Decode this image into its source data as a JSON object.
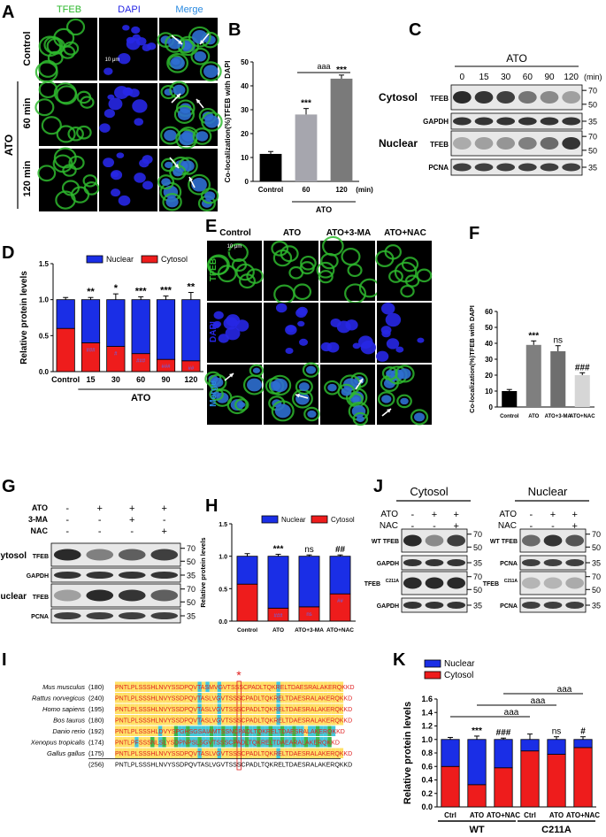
{
  "colors": {
    "nuclear": "#1a2ee6",
    "cytosol": "#ee1c1c",
    "bar_control": "#000000",
    "bar_60": "#a6a6ae",
    "bar_120": "#7a7a7a",
    "tfeb_green": "#2eb82e",
    "dapi_blue": "#2727e6",
    "merge_blue": "#2a8ae0",
    "seq_yellow": "#ffe066",
    "seq_cyan": "#44c8d8",
    "seq_green": "#3cb84c",
    "seq_red": "#e02020"
  },
  "panels": {
    "A": "A",
    "B": "B",
    "C": "C",
    "D": "D",
    "E": "E",
    "F": "F",
    "G": "G",
    "H": "H",
    "I": "I",
    "J": "J",
    "K": "K"
  },
  "panelA": {
    "col_headers": [
      "TFEB",
      "DAPI",
      "Merge"
    ],
    "row_labels": [
      "Control",
      "60 min",
      "120 min"
    ],
    "group_label": "ATO",
    "scale_bar": "10 μm"
  },
  "panelC": {
    "group_label": "ATO",
    "lanes": [
      "0",
      "15",
      "30",
      "60",
      "90",
      "120"
    ],
    "unit": "(min)",
    "rows": [
      {
        "section": "Cytosol",
        "label": "TFEB",
        "markers": [
          "70",
          "50"
        ],
        "band_intensity": [
          0.9,
          0.85,
          0.8,
          0.55,
          0.45,
          0.35
        ]
      },
      {
        "section": "",
        "label": "GAPDH",
        "markers": [
          "35"
        ],
        "band_intensity": [
          0.85,
          0.85,
          0.85,
          0.85,
          0.85,
          0.85
        ]
      },
      {
        "section": "Nuclear",
        "label": "TFEB",
        "markers": [
          "70",
          "50"
        ],
        "band_intensity": [
          0.3,
          0.35,
          0.4,
          0.5,
          0.6,
          0.85
        ]
      },
      {
        "section": "",
        "label": "PCNA",
        "markers": [
          "35"
        ],
        "band_intensity": [
          0.8,
          0.8,
          0.8,
          0.8,
          0.8,
          0.8
        ]
      }
    ]
  },
  "panelE": {
    "col_headers": [
      "Control",
      "ATO",
      "ATO+3-MA",
      "ATO+NAC"
    ],
    "row_labels": [
      "TFEB",
      "DAPI",
      "Merge"
    ],
    "scale_bar": "10 μm"
  },
  "panelG": {
    "treatments": [
      {
        "name": "ATO",
        "signs": [
          "-",
          "+",
          "+",
          "+"
        ]
      },
      {
        "name": "3-MA",
        "signs": [
          "-",
          "-",
          "+",
          "-"
        ]
      },
      {
        "name": "NAC",
        "signs": [
          "-",
          "-",
          "-",
          "+"
        ]
      }
    ],
    "rows": [
      {
        "section": "Cytosol",
        "label": "TFEB",
        "markers": [
          "70",
          "50"
        ],
        "band_intensity": [
          0.9,
          0.5,
          0.65,
          0.8
        ]
      },
      {
        "section": "",
        "label": "GAPDH",
        "markers": [
          "35"
        ],
        "band_intensity": [
          0.85,
          0.85,
          0.85,
          0.85
        ]
      },
      {
        "section": "Nuclear",
        "label": "TFEB",
        "markers": [
          "70",
          "50"
        ],
        "band_intensity": [
          0.35,
          0.9,
          0.85,
          0.65
        ]
      },
      {
        "section": "",
        "label": "PCNA",
        "markers": [
          "35"
        ],
        "band_intensity": [
          0.8,
          0.8,
          0.8,
          0.8
        ]
      }
    ]
  },
  "panelJ": {
    "blocks": [
      {
        "title": "Cytosol",
        "treatments": [
          {
            "name": "ATO",
            "signs": [
              "-",
              "+",
              "+"
            ]
          },
          {
            "name": "NAC",
            "signs": [
              "-",
              "-",
              "+"
            ]
          }
        ],
        "rows": [
          {
            "label": "WT TFEB",
            "sup": "",
            "markers": [
              "70",
              "50"
            ],
            "band_intensity": [
              0.9,
              0.45,
              0.8
            ]
          },
          {
            "label": "GAPDH",
            "sup": "",
            "markers": [
              "35"
            ],
            "band_intensity": [
              0.85,
              0.85,
              0.85
            ]
          },
          {
            "label": "TFEB",
            "sup": "C211A",
            "markers": [
              "70",
              "50"
            ],
            "band_intensity": [
              0.9,
              0.9,
              0.9
            ]
          },
          {
            "label": "GAPDH",
            "sup": "",
            "markers": [
              "35"
            ],
            "band_intensity": [
              0.85,
              0.85,
              0.85
            ]
          }
        ]
      },
      {
        "title": "Nuclear",
        "treatments": [
          {
            "name": "ATO",
            "signs": [
              "-",
              "+",
              "+"
            ]
          },
          {
            "name": "NAC",
            "signs": [
              "-",
              "-",
              "+"
            ]
          }
        ],
        "rows": [
          {
            "label": "WT TFEB",
            "sup": "",
            "markers": [
              "70",
              "50"
            ],
            "band_intensity": [
              0.6,
              0.85,
              0.7
            ]
          },
          {
            "label": "PCNA",
            "sup": "",
            "markers": [
              "35"
            ],
            "band_intensity": [
              0.8,
              0.8,
              0.8
            ]
          },
          {
            "label": "TFEB",
            "sup": "C211A",
            "markers": [
              "70",
              "50"
            ],
            "band_intensity": [
              0.25,
              0.25,
              0.3
            ]
          },
          {
            "label": "PCNA",
            "sup": "",
            "markers": [
              "35"
            ],
            "band_intensity": [
              0.8,
              0.8,
              0.8
            ]
          }
        ]
      }
    ]
  },
  "panelI": {
    "marker": "*",
    "species": [
      {
        "name": "Mus musculus",
        "num": "(180)",
        "seq": "PNTLPLSSSHLNVYSSDPQVTASMVGVTSSSCPADLTQKRELTDAESRALAKERQKKD"
      },
      {
        "name": "Rattus norvegicus",
        "num": "(240)",
        "seq": "PNTLPLSSSHLNVYSSDPQVTASLVGVTSSSCPADLTQKRELTDAESRALAKERQKKD"
      },
      {
        "name": "Homo sapiens",
        "num": "(195)",
        "seq": "PNTLPLSSSHLNVYSSDPQVTASLVGVTSSSCPADLTQKRELTDAESRALAKERQKKD"
      },
      {
        "name": "Bos taurus",
        "num": "(180)",
        "seq": "PNTLPLSSSHLNVYSSDPQVTASLVGVTSSSCPADLTQKRELTDAESRALAKERQKKD"
      },
      {
        "name": "Danio rerio",
        "num": "(192)",
        "seq": "PNTLPLSSSHLDVYSPGHSGSAIAMTSSNCPADLTQKRELTDAESRALAKERQKKD"
      },
      {
        "name": "Xenopus tropicalis",
        "num": "(174)",
        "seq": "PNTLPFSSSNLSLYSDPNPSLSGVTSSSCPADLTQKRELTDAEARALAKERQKKD"
      },
      {
        "name": "Gallus gallus",
        "num": "(175)",
        "seq": "PNTLPLSSSHLNVYSSDPQVTASLVGVTSSSCPADLTQKRELTDAESRALAKERQKKD"
      },
      {
        "name": "",
        "num": "(256)",
        "seq": "PNTLPLSSSHLNVYSSDPQVTASLVGVTSSSCPADLTQKRELTDAESRALAKERQKKD"
      }
    ]
  },
  "chart_data": [
    {
      "panel": "B",
      "type": "bar",
      "categories": [
        "Control",
        "60",
        "120"
      ],
      "values": [
        11.5,
        28,
        43
      ],
      "errors": [
        1,
        2.5,
        1.5
      ],
      "annotations": [
        "",
        "***",
        "***"
      ],
      "bracket_label": "aaa",
      "group_label": "ATO",
      "x_unit": "(min)",
      "ylabel": "Co-localization(%)TFEB with DAPI",
      "ylim": [
        0,
        50
      ],
      "yticks": [
        0,
        10,
        20,
        30,
        40,
        50
      ]
    },
    {
      "panel": "D",
      "type": "bar",
      "stacked": true,
      "categories": [
        "Control",
        "15",
        "30",
        "60",
        "90",
        "120"
      ],
      "series": [
        {
          "name": "Cytosol",
          "values": [
            0.6,
            0.4,
            0.35,
            0.25,
            0.17,
            0.15
          ]
        },
        {
          "name": "Nuclear",
          "values": [
            0.4,
            0.6,
            0.65,
            0.75,
            0.83,
            0.85
          ]
        }
      ],
      "errors": [
        0.03,
        0.03,
        0.08,
        0.04,
        0.05,
        0.1
      ],
      "annotations": [
        "",
        "**",
        "*",
        "***",
        "***",
        "**"
      ],
      "inner_annotations": [
        "",
        "###",
        "#",
        "###",
        "###",
        "##"
      ],
      "group_label": "ATO",
      "x_unit": "(min)",
      "ylabel": "Relative protein levels",
      "ylim": [
        0,
        1.5
      ],
      "yticks": [
        0.0,
        0.5,
        1.0,
        1.5
      ],
      "legend": "top-right"
    },
    {
      "panel": "F",
      "type": "bar",
      "categories": [
        "Control",
        "ATO",
        "ATO+3-MA",
        "ATO+NAC"
      ],
      "values": [
        10,
        39,
        35,
        20
      ],
      "errors": [
        1,
        2.5,
        3.5,
        1.5
      ],
      "annotations": [
        "",
        "***",
        "ns",
        "###"
      ],
      "ylabel": "Co-localization(%)TFEB with DAPI",
      "ylim": [
        0,
        60
      ],
      "yticks": [
        0,
        10,
        20,
        30,
        40,
        50,
        60
      ]
    },
    {
      "panel": "H",
      "type": "bar",
      "stacked": true,
      "categories": [
        "Control",
        "ATO",
        "ATO+3-MA",
        "ATO+NAC"
      ],
      "series": [
        {
          "name": "Cytosol",
          "values": [
            0.57,
            0.2,
            0.22,
            0.42
          ]
        },
        {
          "name": "Nuclear",
          "values": [
            0.43,
            0.8,
            0.78,
            0.58
          ]
        }
      ],
      "errors": [
        0.04,
        0.03,
        0.02,
        0.02
      ],
      "annotations": [
        "",
        "***",
        "ns",
        "##"
      ],
      "inner_annotations": [
        "",
        "###",
        "ns",
        "##"
      ],
      "ylabel": "Relative protein levels",
      "ylim": [
        0,
        1.5
      ],
      "yticks": [
        0.0,
        0.5,
        1.0,
        1.5
      ],
      "legend": "top-right"
    },
    {
      "panel": "K",
      "type": "bar",
      "stacked": true,
      "categories": [
        "Ctrl",
        "ATO",
        "ATO+NAC",
        "Ctrl",
        "ATO",
        "ATO+NAC"
      ],
      "groups": [
        {
          "name": "WT",
          "indices": [
            0,
            1,
            2
          ]
        },
        {
          "name": "C211A",
          "indices": [
            3,
            4,
            5
          ]
        }
      ],
      "series": [
        {
          "name": "Cytosol",
          "values": [
            0.6,
            0.33,
            0.58,
            0.83,
            0.78,
            0.88
          ]
        },
        {
          "name": "Nuclear",
          "values": [
            0.4,
            0.67,
            0.42,
            0.17,
            0.22,
            0.12
          ]
        }
      ],
      "errors": [
        0.03,
        0.05,
        0.02,
        0.08,
        0.04,
        0.04
      ],
      "annotations": [
        "",
        "***",
        "###",
        "",
        "ns",
        "#"
      ],
      "bracket_label": "aaa",
      "ylabel": "Relative protein levels",
      "ylim": [
        0,
        1.6
      ],
      "yticks": [
        0.0,
        0.2,
        0.4,
        0.6,
        0.8,
        1.0,
        1.2,
        1.4,
        1.6
      ],
      "legend": "top-left"
    }
  ]
}
